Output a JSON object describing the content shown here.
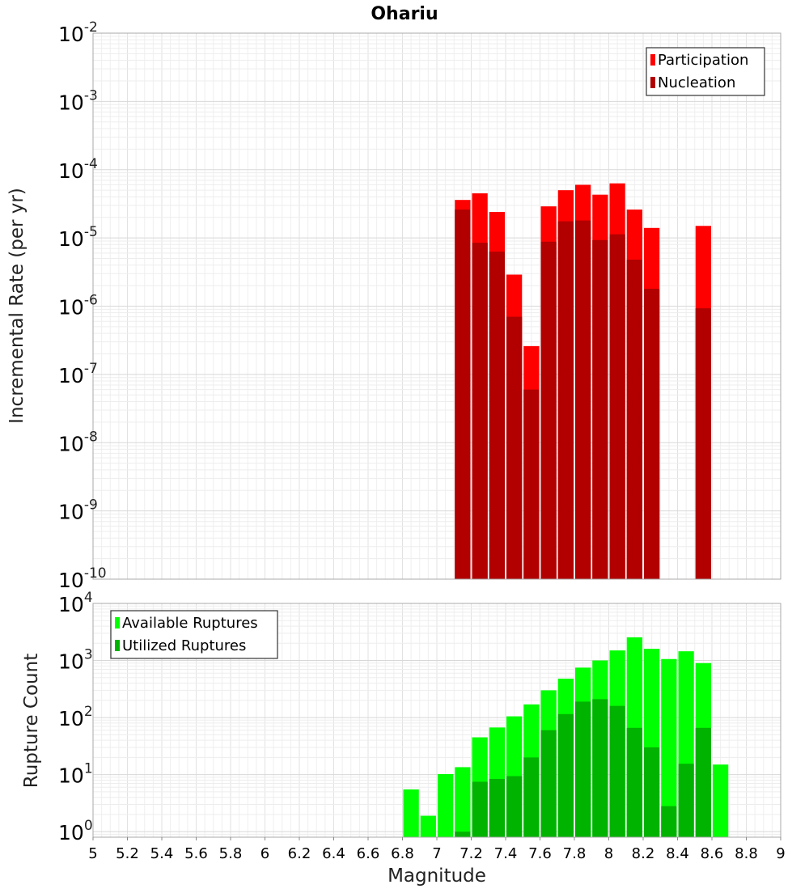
{
  "chart_data": [
    {
      "type": "bar",
      "title": "Ohariu",
      "xlabel": "",
      "ylabel": "Incremental Rate (per yr)",
      "yscale": "log",
      "ylim": [
        1e-10,
        0.01
      ],
      "xlim": [
        5,
        9
      ],
      "y_tick_labels": [
        {
          "base": "10",
          "exp": "-10",
          "value": 1e-10
        },
        {
          "base": "10",
          "exp": "-9",
          "value": 1e-09
        },
        {
          "base": "10",
          "exp": "-8",
          "value": 1e-08
        },
        {
          "base": "10",
          "exp": "-7",
          "value": 1e-07
        },
        {
          "base": "10",
          "exp": "-6",
          "value": 1e-06
        },
        {
          "base": "10",
          "exp": "-5",
          "value": 1e-05
        },
        {
          "base": "10",
          "exp": "-4",
          "value": 0.0001
        },
        {
          "base": "10",
          "exp": "-3",
          "value": 0.001
        },
        {
          "base": "10",
          "exp": "-2",
          "value": 0.01
        }
      ],
      "legend_position": "top-right",
      "series": [
        {
          "name": "Participation",
          "color": "#ff0000",
          "points": [
            {
              "x": 7.15,
              "y": 3.6e-05
            },
            {
              "x": 7.25,
              "y": 4.5e-05
            },
            {
              "x": 7.35,
              "y": 2.4e-05
            },
            {
              "x": 7.45,
              "y": 2.9e-06
            },
            {
              "x": 7.55,
              "y": 2.6e-07
            },
            {
              "x": 7.65,
              "y": 2.9e-05
            },
            {
              "x": 7.75,
              "y": 5e-05
            },
            {
              "x": 7.85,
              "y": 6e-05
            },
            {
              "x": 7.95,
              "y": 4.3e-05
            },
            {
              "x": 8.05,
              "y": 6.3e-05
            },
            {
              "x": 8.15,
              "y": 2.6e-05
            },
            {
              "x": 8.25,
              "y": 1.4e-05
            },
            {
              "x": 8.55,
              "y": 1.5e-05
            }
          ]
        },
        {
          "name": "Nucleation",
          "color": "#b20000",
          "points": [
            {
              "x": 7.15,
              "y": 2.6e-05
            },
            {
              "x": 7.25,
              "y": 8.5e-06
            },
            {
              "x": 7.35,
              "y": 6.3e-06
            },
            {
              "x": 7.45,
              "y": 7e-07
            },
            {
              "x": 7.55,
              "y": 6e-08
            },
            {
              "x": 7.65,
              "y": 8.8e-06
            },
            {
              "x": 7.75,
              "y": 1.75e-05
            },
            {
              "x": 7.85,
              "y": 1.8e-05
            },
            {
              "x": 7.95,
              "y": 9.3e-06
            },
            {
              "x": 8.05,
              "y": 1.13e-05
            },
            {
              "x": 8.15,
              "y": 4.8e-06
            },
            {
              "x": 8.25,
              "y": 1.8e-06
            },
            {
              "x": 8.55,
              "y": 9.3e-07
            }
          ]
        }
      ]
    },
    {
      "type": "bar",
      "title": "",
      "xlabel": "Magnitude",
      "ylabel": "Rupture Count",
      "yscale": "log",
      "ylim": [
        0.8,
        10000
      ],
      "xlim": [
        5,
        9
      ],
      "x_tick_labels": [
        "5",
        "5.2",
        "5.4",
        "5.6",
        "5.8",
        "6",
        "6.2",
        "6.4",
        "6.6",
        "6.8",
        "7",
        "7.2",
        "7.4",
        "7.6",
        "7.8",
        "8",
        "8.2",
        "8.4",
        "8.6",
        "8.8",
        "9"
      ],
      "y_tick_labels": [
        {
          "base": "10",
          "exp": "0",
          "value": 1
        },
        {
          "base": "10",
          "exp": "1",
          "value": 10
        },
        {
          "base": "10",
          "exp": "2",
          "value": 100
        },
        {
          "base": "10",
          "exp": "3",
          "value": 1000
        },
        {
          "base": "10",
          "exp": "4",
          "value": 10000
        }
      ],
      "legend_position": "top-left",
      "series": [
        {
          "name": "Available Ruptures",
          "color": "#00ff00",
          "points": [
            {
              "x": 6.85,
              "y": 5.5
            },
            {
              "x": 6.95,
              "y": 1.9
            },
            {
              "x": 7.05,
              "y": 10.2
            },
            {
              "x": 7.15,
              "y": 13.5
            },
            {
              "x": 7.25,
              "y": 45
            },
            {
              "x": 7.35,
              "y": 67
            },
            {
              "x": 7.45,
              "y": 105
            },
            {
              "x": 7.55,
              "y": 170
            },
            {
              "x": 7.65,
              "y": 300
            },
            {
              "x": 7.75,
              "y": 480
            },
            {
              "x": 7.85,
              "y": 750
            },
            {
              "x": 7.95,
              "y": 1000
            },
            {
              "x": 8.05,
              "y": 1500
            },
            {
              "x": 8.15,
              "y": 2550
            },
            {
              "x": 8.25,
              "y": 1600
            },
            {
              "x": 8.35,
              "y": 1060
            },
            {
              "x": 8.45,
              "y": 1450
            },
            {
              "x": 8.55,
              "y": 900
            },
            {
              "x": 8.65,
              "y": 15
            }
          ]
        },
        {
          "name": "Utilized Ruptures",
          "color": "#00b300",
          "points": [
            {
              "x": 7.15,
              "y": 1.0
            },
            {
              "x": 7.25,
              "y": 7.5
            },
            {
              "x": 7.35,
              "y": 8.4
            },
            {
              "x": 7.45,
              "y": 9.4
            },
            {
              "x": 7.55,
              "y": 20
            },
            {
              "x": 7.65,
              "y": 60
            },
            {
              "x": 7.75,
              "y": 115
            },
            {
              "x": 7.85,
              "y": 190
            },
            {
              "x": 7.95,
              "y": 210
            },
            {
              "x": 8.05,
              "y": 160
            },
            {
              "x": 8.15,
              "y": 66
            },
            {
              "x": 8.25,
              "y": 30
            },
            {
              "x": 8.35,
              "y": 2.8
            },
            {
              "x": 8.45,
              "y": 15.5
            },
            {
              "x": 8.55,
              "y": 66
            }
          ]
        }
      ]
    }
  ]
}
